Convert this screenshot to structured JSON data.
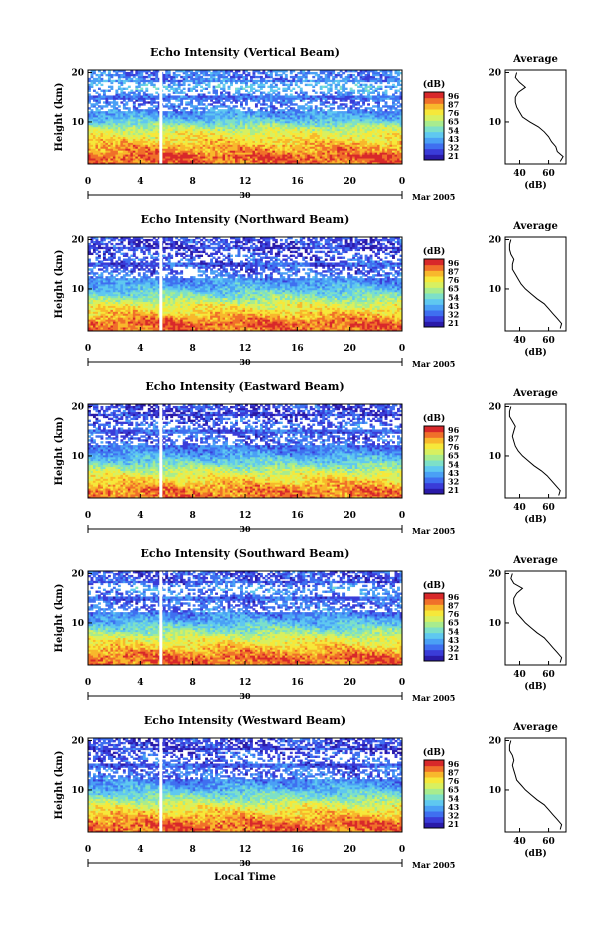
{
  "figure": {
    "xlabel": "Local Time",
    "date_day": "30",
    "date_month_year": "Mar 2005",
    "colorbar_unit": "(dB)",
    "colorbar_ticks": [
      "96",
      "87",
      "76",
      "65",
      "54",
      "43",
      "32",
      "21"
    ],
    "average_title": "Average",
    "average_xlabel": "(dB)",
    "panel_ylabel": "Height (km)",
    "colormap": [
      "#2a1aa8",
      "#3a3cd8",
      "#3f6ff0",
      "#4aa0f5",
      "#5fc8f0",
      "#7de0c8",
      "#a8ec8e",
      "#d8f060",
      "#f6e83a",
      "#f8b82c",
      "#f0702a",
      "#d8282a"
    ]
  },
  "chart_data": [
    {
      "type": "heatmap",
      "title": "Echo Intensity (Vertical Beam)",
      "xlabel": "",
      "ylabel": "Height (km)",
      "xlim": [
        0,
        24
      ],
      "ylim": [
        1.5,
        20.5
      ],
      "xticks": [
        "0",
        "4",
        "8",
        "12",
        "16",
        "20",
        "0"
      ],
      "yticks": [
        "10",
        "20"
      ],
      "colorbar": {
        "label": "(dB)",
        "range": [
          21,
          96
        ],
        "ticks": [
          "96",
          "87",
          "76",
          "65",
          "54",
          "43",
          "32",
          "21"
        ]
      },
      "average_profile": {
        "title": "Average",
        "xlabel": "(dB)",
        "xlim": [
          30,
          72
        ],
        "ylim": [
          1.5,
          20.5
        ],
        "xticks": [
          "40",
          "60"
        ],
        "yticks": [
          "10",
          "20"
        ],
        "height_km": [
          2,
          3,
          4,
          5,
          6,
          7,
          8,
          9,
          10,
          11,
          12,
          13,
          14,
          15,
          16,
          17,
          18,
          19,
          20
        ],
        "power_db": [
          68,
          70,
          66,
          65,
          62,
          60,
          57,
          53,
          47,
          42,
          40,
          38,
          37,
          37,
          39,
          44,
          40,
          37,
          38
        ]
      }
    },
    {
      "type": "heatmap",
      "title": "Echo Intensity (Northward Beam)",
      "xlabel": "",
      "ylabel": "Height (km)",
      "xlim": [
        0,
        24
      ],
      "ylim": [
        1.5,
        20.5
      ],
      "xticks": [
        "0",
        "4",
        "8",
        "12",
        "16",
        "20",
        "0"
      ],
      "yticks": [
        "10",
        "20"
      ],
      "colorbar": {
        "label": "(dB)",
        "range": [
          21,
          96
        ],
        "ticks": [
          "96",
          "87",
          "76",
          "65",
          "54",
          "43",
          "32",
          "21"
        ]
      },
      "average_profile": {
        "title": "Average",
        "xlabel": "(dB)",
        "xlim": [
          30,
          72
        ],
        "ylim": [
          1.5,
          20.5
        ],
        "xticks": [
          "40",
          "60"
        ],
        "yticks": [
          "10",
          "20"
        ],
        "height_km": [
          2,
          3,
          4,
          5,
          6,
          7,
          8,
          9,
          10,
          11,
          12,
          13,
          14,
          15,
          16,
          17,
          18,
          19,
          20
        ],
        "power_db": [
          68,
          69,
          66,
          63,
          60,
          57,
          52,
          48,
          44,
          41,
          39,
          37,
          35,
          35,
          36,
          34,
          33,
          33,
          34
        ]
      }
    },
    {
      "type": "heatmap",
      "title": "Echo Intensity (Eastward Beam)",
      "xlabel": "",
      "ylabel": "Height (km)",
      "xlim": [
        0,
        24
      ],
      "ylim": [
        1.5,
        20.5
      ],
      "xticks": [
        "0",
        "4",
        "8",
        "12",
        "16",
        "20",
        "0"
      ],
      "yticks": [
        "10",
        "20"
      ],
      "colorbar": {
        "label": "(dB)",
        "range": [
          21,
          96
        ],
        "ticks": [
          "96",
          "87",
          "76",
          "65",
          "54",
          "43",
          "32",
          "21"
        ]
      },
      "average_profile": {
        "title": "Average",
        "xlabel": "(dB)",
        "xlim": [
          30,
          72
        ],
        "ylim": [
          1.5,
          20.5
        ],
        "xticks": [
          "40",
          "60"
        ],
        "yticks": [
          "10",
          "20"
        ],
        "height_km": [
          2,
          3,
          4,
          5,
          6,
          7,
          8,
          9,
          10,
          11,
          12,
          13,
          14,
          15,
          16,
          17,
          18,
          19,
          20
        ],
        "power_db": [
          67,
          68,
          65,
          62,
          59,
          55,
          50,
          46,
          42,
          39,
          37,
          36,
          35,
          36,
          37,
          35,
          33,
          33,
          34
        ]
      }
    },
    {
      "type": "heatmap",
      "title": "Echo Intensity (Southward Beam)",
      "xlabel": "",
      "ylabel": "Height (km)",
      "xlim": [
        0,
        24
      ],
      "ylim": [
        1.5,
        20.5
      ],
      "xticks": [
        "0",
        "4",
        "8",
        "12",
        "16",
        "20",
        "0"
      ],
      "yticks": [
        "10",
        "20"
      ],
      "colorbar": {
        "label": "(dB)",
        "range": [
          21,
          96
        ],
        "ticks": [
          "96",
          "87",
          "76",
          "65",
          "54",
          "43",
          "32",
          "21"
        ]
      },
      "average_profile": {
        "title": "Average",
        "xlabel": "(dB)",
        "xlim": [
          30,
          72
        ],
        "ylim": [
          1.5,
          20.5
        ],
        "xticks": [
          "40",
          "60"
        ],
        "yticks": [
          "10",
          "20"
        ],
        "height_km": [
          2,
          3,
          4,
          5,
          6,
          7,
          8,
          9,
          10,
          11,
          12,
          13,
          14,
          15,
          16,
          17,
          18,
          19,
          20
        ],
        "power_db": [
          68,
          69,
          66,
          63,
          60,
          57,
          52,
          48,
          44,
          41,
          38,
          37,
          36,
          36,
          38,
          42,
          36,
          34,
          35
        ]
      }
    },
    {
      "type": "heatmap",
      "title": "Echo Intensity (Westward Beam)",
      "xlabel": "Local Time",
      "ylabel": "Height (km)",
      "xlim": [
        0,
        24
      ],
      "ylim": [
        1.5,
        20.5
      ],
      "xticks": [
        "0",
        "4",
        "8",
        "12",
        "16",
        "20",
        "0"
      ],
      "yticks": [
        "10",
        "20"
      ],
      "colorbar": {
        "label": "(dB)",
        "range": [
          21,
          96
        ],
        "ticks": [
          "96",
          "87",
          "76",
          "65",
          "54",
          "43",
          "32",
          "21"
        ]
      },
      "average_profile": {
        "title": "Average",
        "xlabel": "(dB)",
        "xlim": [
          30,
          72
        ],
        "ylim": [
          1.5,
          20.5
        ],
        "xticks": [
          "40",
          "60"
        ],
        "yticks": [
          "10",
          "20"
        ],
        "height_km": [
          2,
          3,
          4,
          5,
          6,
          7,
          8,
          9,
          10,
          11,
          12,
          13,
          14,
          15,
          16,
          17,
          18,
          19,
          20
        ],
        "power_db": [
          68,
          69,
          66,
          63,
          60,
          57,
          52,
          48,
          44,
          41,
          38,
          37,
          36,
          35,
          36,
          35,
          33,
          33,
          34
        ]
      }
    }
  ]
}
